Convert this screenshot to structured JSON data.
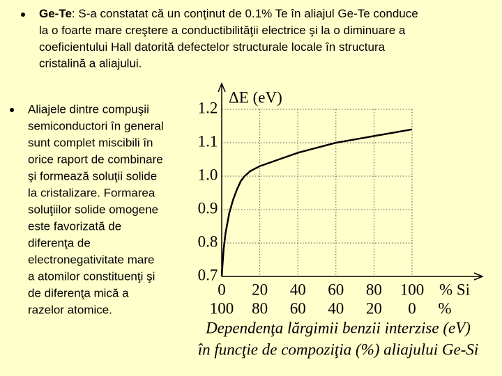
{
  "bullets": [
    {
      "term": "Ge-Te",
      "lines": [
        ": S-a constatat că un conţinut de 0.1% Te în aliajul Ge-Te conduce",
        "la o foarte mare creştere a conductibilităţii electrice şi la o diminuare a",
        "coeficientului Hall datorită defectelor structurale locale în structura",
        "cristalină a aliajului."
      ]
    },
    {
      "lines": [
        "Aliajele dintre compuşii",
        "semiconductori în general",
        "sunt complet miscibili în",
        "orice raport de combinare",
        "şi formează soluţii solide",
        "la cristalizare. Formarea",
        "soluţiilor solide omogene",
        "este favorizată de",
        "diferenţa de",
        "electronegativitate mare",
        "a atomilor constituenţi şi",
        "de diferenţa mică a",
        "razelor atomice."
      ]
    }
  ],
  "chart_data": {
    "type": "line",
    "ylabel": "ΔE (eV)",
    "xlabel": "% Si",
    "x2label": "%",
    "caption": [
      "Dependenţa lărgimii benzii interzise (eV)",
      "în funcţie de compoziţia (%) aliajului Ge-Si"
    ],
    "x": [
      0,
      1,
      2,
      4,
      6,
      8,
      10,
      12,
      15,
      20,
      30,
      40,
      50,
      60,
      70,
      80,
      90,
      100
    ],
    "series": [
      {
        "color": "#000000",
        "values": [
          0.7,
          0.78,
          0.83,
          0.89,
          0.93,
          0.96,
          0.985,
          1.0,
          1.015,
          1.03,
          1.05,
          1.07,
          1.085,
          1.1,
          1.11,
          1.12,
          1.13,
          1.14
        ]
      }
    ],
    "xlim": [
      0,
      100
    ],
    "xticks": [
      0,
      20,
      40,
      60,
      80,
      100
    ],
    "x2lim": [
      100,
      0
    ],
    "x2ticks": [
      100,
      80,
      60,
      40,
      20,
      0
    ],
    "ylim": [
      0.7,
      1.2
    ],
    "yticks": [
      0.7,
      0.8,
      0.9,
      {
        "value": 1,
        "label": "1.0"
      },
      1.1,
      1.2
    ],
    "grid": true
  }
}
